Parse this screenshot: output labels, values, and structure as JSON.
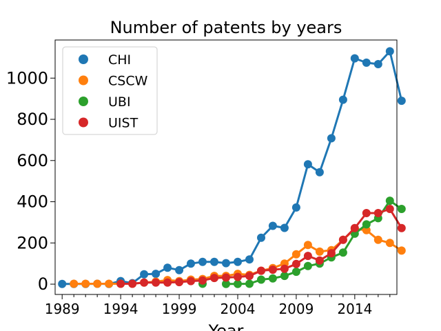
{
  "chart_data": {
    "type": "line",
    "title": "Number of patents by years",
    "xlabel": "Year",
    "ylabel": "",
    "xlim": [
      1988.4,
      2017.6
    ],
    "ylim": [
      -50,
      1185
    ],
    "xticks": [
      1989,
      1994,
      1999,
      2004,
      2009,
      2014
    ],
    "xtick_labels": [
      "1989",
      "1994",
      "1999",
      "2004",
      "2009",
      "2014"
    ],
    "yticks": [
      0,
      200,
      400,
      600,
      800,
      1000
    ],
    "ytick_labels": [
      "0",
      "200",
      "400",
      "600",
      "800",
      "1000"
    ],
    "legend_position": "top-left",
    "grid": false,
    "series": [
      {
        "name": "CHI",
        "color": "#1f77b4",
        "points": [
          [
            1989,
            1
          ],
          [
            1990,
            1
          ],
          [
            1991,
            1
          ],
          [
            1992,
            2
          ],
          [
            1993,
            1
          ],
          [
            1994,
            15
          ],
          [
            1995,
            5
          ],
          [
            1996,
            48
          ],
          [
            1997,
            50
          ],
          [
            1998,
            80
          ],
          [
            1999,
            68
          ],
          [
            2000,
            100
          ],
          [
            2001,
            108
          ],
          [
            2002,
            108
          ],
          [
            2003,
            102
          ],
          [
            2004,
            108
          ],
          [
            2005,
            120
          ],
          [
            2006,
            225
          ],
          [
            2007,
            283
          ],
          [
            2008,
            273
          ],
          [
            2009,
            372
          ],
          [
            2010,
            582
          ],
          [
            2011,
            543
          ],
          [
            2012,
            708
          ],
          [
            2013,
            895
          ],
          [
            2014,
            1096
          ],
          [
            2015,
            1075
          ],
          [
            2016,
            1068
          ],
          [
            2017,
            1130
          ],
          [
            2018,
            890
          ]
        ]
      },
      {
        "name": "CSCW",
        "color": "#ff7f0e",
        "points": [
          [
            1990,
            2
          ],
          [
            1991,
            2
          ],
          [
            1992,
            2
          ],
          [
            1993,
            2
          ],
          [
            1994,
            2
          ],
          [
            1995,
            2
          ],
          [
            1996,
            8
          ],
          [
            1997,
            12
          ],
          [
            1998,
            20
          ],
          [
            1999,
            15
          ],
          [
            2000,
            22
          ],
          [
            2001,
            25
          ],
          [
            2002,
            40
          ],
          [
            2003,
            40
          ],
          [
            2004,
            50
          ],
          [
            2005,
            45
          ],
          [
            2006,
            65
          ],
          [
            2007,
            78
          ],
          [
            2008,
            100
          ],
          [
            2009,
            145
          ],
          [
            2010,
            190
          ],
          [
            2011,
            158
          ],
          [
            2012,
            165
          ],
          [
            2013,
            215
          ],
          [
            2014,
            268
          ],
          [
            2015,
            262
          ],
          [
            2016,
            215
          ],
          [
            2017,
            200
          ],
          [
            2018,
            163
          ]
        ]
      },
      {
        "name": "UBI",
        "color": "#2ca02c",
        "points": [
          [
            2001,
            2
          ],
          [
            2002,
            null
          ],
          [
            2003,
            1
          ],
          [
            2004,
            1
          ],
          [
            2005,
            2
          ],
          [
            2006,
            22
          ],
          [
            2007,
            28
          ],
          [
            2008,
            40
          ],
          [
            2009,
            60
          ],
          [
            2010,
            88
          ],
          [
            2011,
            100
          ],
          [
            2012,
            130
          ],
          [
            2013,
            153
          ],
          [
            2014,
            245
          ],
          [
            2015,
            290
          ],
          [
            2016,
            320
          ],
          [
            2017,
            405
          ],
          [
            2018,
            365
          ]
        ]
      },
      {
        "name": "UIST",
        "color": "#d62728",
        "points": [
          [
            1994,
            2
          ],
          [
            1995,
            2
          ],
          [
            1996,
            8
          ],
          [
            1997,
            8
          ],
          [
            1998,
            8
          ],
          [
            1999,
            10
          ],
          [
            2000,
            15
          ],
          [
            2001,
            18
          ],
          [
            2002,
            30
          ],
          [
            2003,
            32
          ],
          [
            2004,
            35
          ],
          [
            2005,
            40
          ],
          [
            2006,
            65
          ],
          [
            2007,
            70
          ],
          [
            2008,
            75
          ],
          [
            2009,
            98
          ],
          [
            2010,
            137
          ],
          [
            2011,
            115
          ],
          [
            2012,
            150
          ],
          [
            2013,
            215
          ],
          [
            2014,
            272
          ],
          [
            2015,
            345
          ],
          [
            2016,
            345
          ],
          [
            2017,
            365
          ],
          [
            2018,
            272
          ]
        ]
      }
    ]
  }
}
